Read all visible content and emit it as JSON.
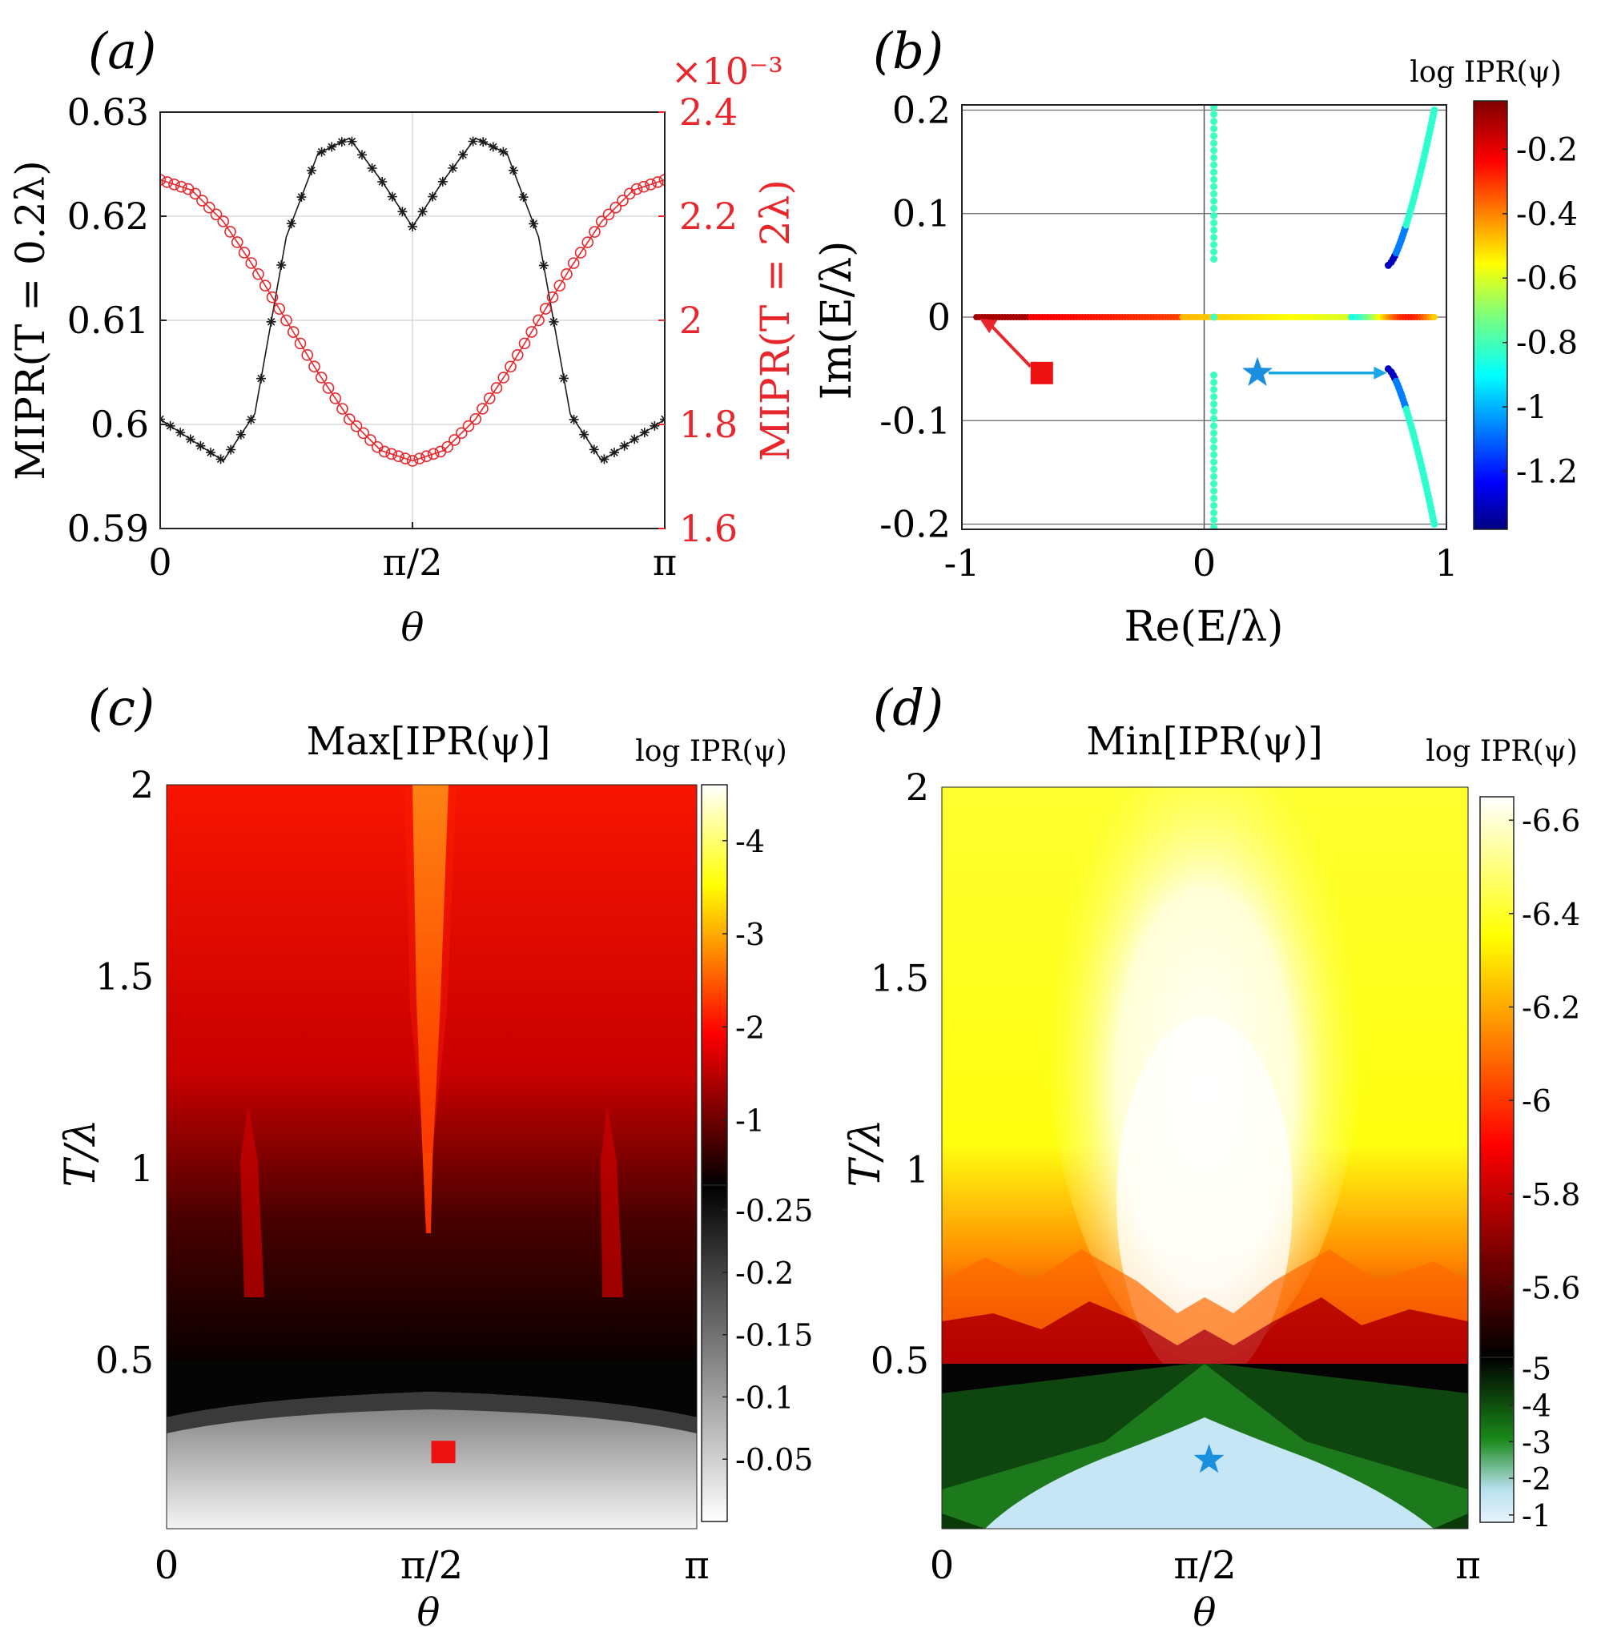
{
  "figure": {
    "panel_labels": [
      "(a)",
      "(b)",
      "(c)",
      "(d)"
    ]
  },
  "colors": {
    "black_series": "#1a1a1a",
    "red_series": "#e8262b",
    "red_axis": "#e8262b",
    "square_marker": "#ee1111",
    "star_marker": "#1a8fe0",
    "arrow_blue": "#1aa7e8"
  },
  "chart_data": [
    {
      "panel": "(a)",
      "type": "line",
      "xlabel": "θ",
      "ylabel_left": "MIPR(T = 0.2λ)",
      "ylabel_right": "MIPR(T = 2λ)",
      "right_exponent": "×10⁻³",
      "xlim": [
        0,
        3.14159
      ],
      "ylim_left": [
        0.59,
        0.63
      ],
      "ylim_right": [
        1.6,
        2.4
      ],
      "xticks": [
        0,
        1.5708,
        3.14159
      ],
      "xtick_labels": [
        "0",
        "π/2",
        "π"
      ],
      "yticks_left": [
        0.59,
        0.6,
        0.61,
        0.62,
        0.63
      ],
      "ytick_labels_left": [
        "0.59",
        "0.6",
        "0.61",
        "0.62",
        "0.63"
      ],
      "yticks_right": [
        1.6,
        1.8,
        2.0,
        2.2,
        2.4
      ],
      "ytick_labels_right": [
        "1.6",
        "1.8",
        "2",
        "2.2",
        "2.4"
      ],
      "grid": true,
      "series": [
        {
          "marker": "asterisk",
          "axis": "left",
          "theta": [
            0,
            0.196,
            0.393,
            0.589,
            0.785,
            0.982,
            1.178,
            1.374,
            1.571,
            1.767,
            1.963,
            2.16,
            2.356,
            2.553,
            2.749,
            2.945,
            3.142
          ],
          "values": [
            0.6005,
            0.5985,
            0.5965,
            0.601,
            0.618,
            0.626,
            0.6275,
            0.6235,
            0.619,
            0.6235,
            0.6275,
            0.626,
            0.618,
            0.601,
            0.5965,
            0.5985,
            0.6005
          ]
        },
        {
          "marker": "circle",
          "axis": "right",
          "theta": [
            0,
            0.196,
            0.393,
            0.589,
            0.785,
            0.982,
            1.178,
            1.374,
            1.571,
            1.767,
            1.963,
            2.16,
            2.356,
            2.553,
            2.749,
            2.945,
            3.142
          ],
          "values": [
            2.27,
            2.25,
            2.19,
            2.1,
            2.0,
            1.9,
            1.81,
            1.75,
            1.73,
            1.75,
            1.81,
            1.9,
            2.0,
            2.1,
            2.19,
            2.25,
            2.27
          ]
        }
      ]
    },
    {
      "panel": "(b)",
      "type": "scatter",
      "xlabel": "Re(E/λ)",
      "ylabel": "Im(E/λ)",
      "colorbar_label": "log IPR(ψ)",
      "xlim": [
        -1,
        1
      ],
      "ylim": [
        -0.205,
        0.205
      ],
      "xticks": [
        -1,
        0,
        1
      ],
      "xtick_labels": [
        "-1",
        "0",
        "1"
      ],
      "yticks": [
        -0.2,
        -0.1,
        0,
        0.1,
        0.2
      ],
      "ytick_labels": [
        "-0.2",
        "-0.1",
        "0",
        "0.1",
        "0.2"
      ],
      "colorbar_ticks": [
        -1.2,
        -1,
        -0.8,
        -0.6,
        -0.4,
        -0.2
      ],
      "colorbar_tick_labels": [
        "-1.2",
        "-1",
        "-0.8",
        "-0.6",
        "-0.4",
        "-0.2"
      ],
      "colorbar_range": [
        -1.38,
        -0.05
      ],
      "grid": true,
      "groups": [
        {
          "kind": "real-axis",
          "re_range": [
            -0.94,
            0.95
          ],
          "im": 0
        },
        {
          "kind": "vertical",
          "re": 0.04,
          "im_range": [
            -0.21,
            0.21
          ],
          "log_ipr": -0.8
        },
        {
          "kind": "upper-arc",
          "re_range": [
            0.76,
            0.95
          ],
          "im_range": [
            0.05,
            0.2
          ]
        },
        {
          "kind": "lower-arc",
          "re_range": [
            0.76,
            0.95
          ],
          "im_range": [
            -0.05,
            -0.2
          ]
        }
      ],
      "markers": [
        {
          "shape": "square",
          "re": -0.67,
          "im": -0.054,
          "points_to": [
            -0.94,
            0
          ]
        },
        {
          "shape": "star",
          "re": 0.22,
          "im": -0.054,
          "points_to": [
            0.76,
            -0.054
          ]
        }
      ]
    },
    {
      "panel": "(c)",
      "type": "heatmap",
      "title": "Max[IPR(ψ)]",
      "xlabel": "θ",
      "ylabel": "T/λ",
      "colorbar_label": "log IPR(ψ)",
      "xlim": [
        0,
        3.14159
      ],
      "ylim": [
        0.06,
        2
      ],
      "xtick_labels": [
        "0",
        "π/2",
        "π"
      ],
      "yticks": [
        0.5,
        1,
        1.5,
        2
      ],
      "ytick_labels": [
        "0.5",
        "1",
        "1.5",
        "2"
      ],
      "colorbar_segments": [
        {
          "name": "hot",
          "range": [
            -4.6,
            -0.3
          ],
          "ticks": [
            -4,
            -3,
            -2,
            -1
          ],
          "tick_labels": [
            "-4",
            "-3",
            "-2",
            "-1"
          ]
        },
        {
          "name": "gray",
          "range": [
            -0.27,
            0
          ],
          "ticks": [
            -0.25,
            -0.2,
            -0.15,
            -0.1,
            -0.05
          ],
          "tick_labels": [
            "-0.25",
            "-0.2",
            "-0.15",
            "-0.1",
            "-0.05"
          ]
        }
      ],
      "transition_T": 0.48,
      "marker": {
        "shape": "square",
        "theta": 1.64,
        "T": 0.26
      }
    },
    {
      "panel": "(d)",
      "type": "heatmap",
      "title": "Min[IPR(ψ)]",
      "xlabel": "θ",
      "ylabel": "T/λ",
      "colorbar_label": "log IPR(ψ)",
      "xlim": [
        0,
        3.14159
      ],
      "ylim": [
        0.06,
        2
      ],
      "xtick_labels": [
        "0",
        "π/2",
        "π"
      ],
      "yticks": [
        0.5,
        1,
        1.5,
        2
      ],
      "ytick_labels": [
        "0.5",
        "1",
        "1.5",
        "2"
      ],
      "colorbar_segments": [
        {
          "name": "hot",
          "range": [
            -6.65,
            -5.45
          ],
          "ticks": [
            -6.6,
            -6.4,
            -6.2,
            -6,
            -5.8,
            -5.6
          ],
          "tick_labels": [
            "-6.6",
            "-6.4",
            "-6.2",
            "-6",
            "-5.8",
            "-5.6"
          ]
        },
        {
          "name": "green",
          "range": [
            -5.3,
            -0.8
          ],
          "ticks": [
            -5,
            -4,
            -3,
            -2,
            -1
          ],
          "tick_labels": [
            "-5",
            "-4",
            "-3",
            "-2",
            "-1"
          ]
        }
      ],
      "transition_T": 0.48,
      "marker": {
        "shape": "star",
        "theta": 1.595,
        "T": 0.24
      }
    }
  ]
}
